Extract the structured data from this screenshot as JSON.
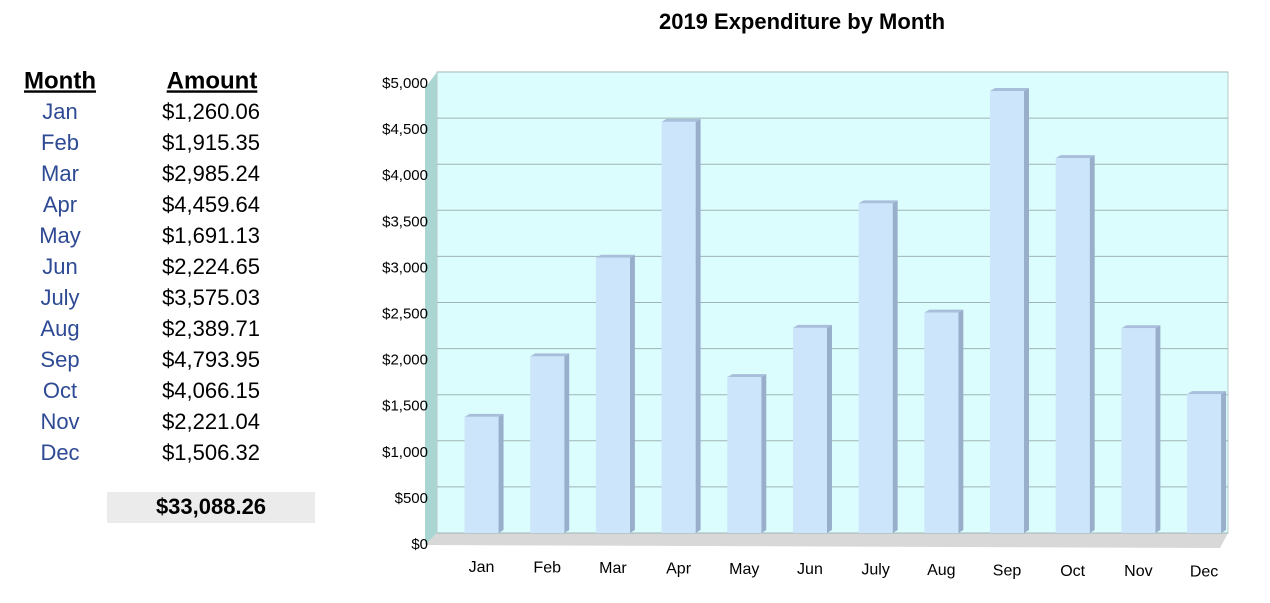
{
  "table": {
    "headers": [
      "Month",
      "Amount"
    ],
    "rows": [
      [
        "Jan",
        "$1,260.06"
      ],
      [
        "Feb",
        "$1,915.35"
      ],
      [
        "Mar",
        "$2,985.24"
      ],
      [
        "Apr",
        "$4,459.64"
      ],
      [
        "May",
        "$1,691.13"
      ],
      [
        "Jun",
        "$2,224.65"
      ],
      [
        "July",
        "$3,575.03"
      ],
      [
        "Aug",
        "$2,389.71"
      ],
      [
        "Sep",
        "$4,793.95"
      ],
      [
        "Oct",
        "$4,066.15"
      ],
      [
        "Nov",
        "$2,221.04"
      ],
      [
        "Dec",
        "$1,506.32"
      ]
    ],
    "total": "$33,088.26"
  },
  "chart_data": {
    "type": "bar",
    "title": "2019 Expenditure by Month",
    "categories": [
      "Jan",
      "Feb",
      "Mar",
      "Apr",
      "May",
      "Jun",
      "July",
      "Aug",
      "Sep",
      "Oct",
      "Nov",
      "Dec"
    ],
    "values": [
      1260.06,
      1915.35,
      2985.24,
      4459.64,
      1691.13,
      2224.65,
      3575.03,
      2389.71,
      4793.95,
      4066.15,
      2221.04,
      1506.32
    ],
    "color": "#cce5fb",
    "ylim": [
      0,
      5000
    ],
    "yticks": [
      {
        "value": 0,
        "label": "$0"
      },
      {
        "value": 500,
        "label": "$500"
      },
      {
        "value": 1000,
        "label": "$1,000"
      },
      {
        "value": 1500,
        "label": "$1,500"
      },
      {
        "value": 2000,
        "label": "$2,000"
      },
      {
        "value": 2500,
        "label": "$2,500"
      },
      {
        "value": 3000,
        "label": "$3,000"
      },
      {
        "value": 3500,
        "label": "$3,500"
      },
      {
        "value": 4000,
        "label": "$4,000"
      },
      {
        "value": 4500,
        "label": "$4,500"
      },
      {
        "value": 5000,
        "label": "$5,000"
      }
    ],
    "grid": true
  }
}
